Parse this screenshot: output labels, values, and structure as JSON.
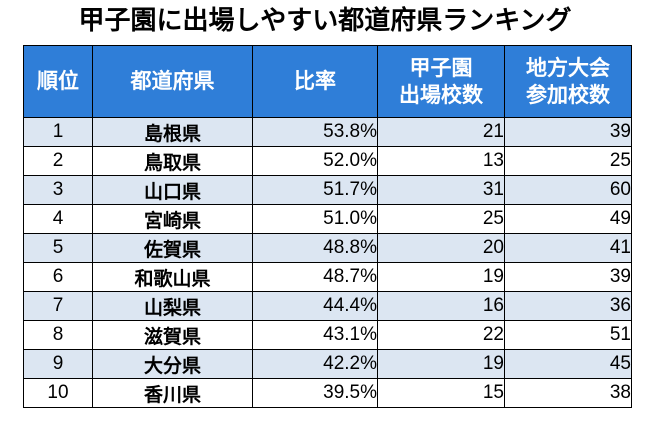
{
  "title": "甲子園に出場しやすい都道府県ランキング",
  "headers": {
    "rank": "順位",
    "prefecture": "都道府県",
    "ratio": "比率",
    "koshien_line1": "甲子園",
    "koshien_line2": "出場校数",
    "regional_line1": "地方大会",
    "regional_line2": "参加校数"
  },
  "rows": [
    {
      "rank": "1",
      "prefecture": "島根県",
      "ratio": "53.8%",
      "koshien": "21",
      "regional": "39"
    },
    {
      "rank": "2",
      "prefecture": "鳥取県",
      "ratio": "52.0%",
      "koshien": "13",
      "regional": "25"
    },
    {
      "rank": "3",
      "prefecture": "山口県",
      "ratio": "51.7%",
      "koshien": "31",
      "regional": "60"
    },
    {
      "rank": "4",
      "prefecture": "宮崎県",
      "ratio": "51.0%",
      "koshien": "25",
      "regional": "49"
    },
    {
      "rank": "5",
      "prefecture": "佐賀県",
      "ratio": "48.8%",
      "koshien": "20",
      "regional": "41"
    },
    {
      "rank": "6",
      "prefecture": "和歌山県",
      "ratio": "48.7%",
      "koshien": "19",
      "regional": "39"
    },
    {
      "rank": "7",
      "prefecture": "山梨県",
      "ratio": "44.4%",
      "koshien": "16",
      "regional": "36"
    },
    {
      "rank": "8",
      "prefecture": "滋賀県",
      "ratio": "43.1%",
      "koshien": "22",
      "regional": "51"
    },
    {
      "rank": "9",
      "prefecture": "大分県",
      "ratio": "42.2%",
      "koshien": "19",
      "regional": "45"
    },
    {
      "rank": "10",
      "prefecture": "香川県",
      "ratio": "39.5%",
      "koshien": "15",
      "regional": "38"
    }
  ],
  "colors": {
    "header_bg": "#2f7ed8",
    "header_text": "#ffffff",
    "odd_row_bg": "#dce6f2",
    "even_row_bg": "#ffffff"
  }
}
